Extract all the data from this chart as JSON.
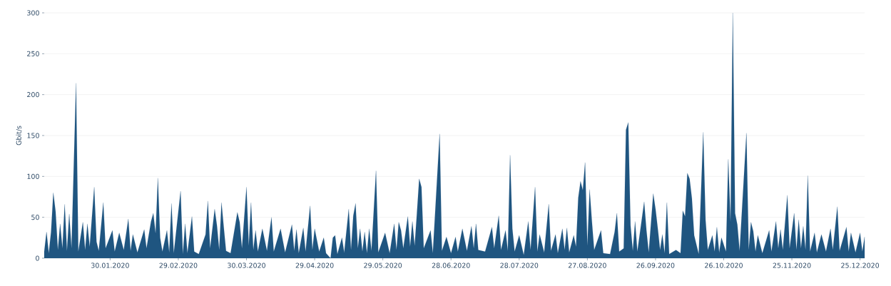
{
  "chart_data": {
    "type": "area",
    "ylabel": "Gbit/s",
    "color": "#1f5580",
    "grid": "y",
    "ylim": [
      0,
      300
    ],
    "yticks": [
      0,
      50,
      100,
      150,
      200,
      250,
      300
    ],
    "xlim": [
      "2020-01-01",
      "2020-12-27"
    ],
    "xticks": [
      {
        "value": "2020-01-30",
        "label": "30.01.2020"
      },
      {
        "value": "2020-02-29",
        "label": "29.02.2020"
      },
      {
        "value": "2020-03-30",
        "label": "30.03.2020"
      },
      {
        "value": "2020-04-29",
        "label": "29.04.2020"
      },
      {
        "value": "2020-05-29",
        "label": "29.05.2020"
      },
      {
        "value": "2020-06-28",
        "label": "28.06.2020"
      },
      {
        "value": "2020-07-28",
        "label": "28.07.2020"
      },
      {
        "value": "2020-08-27",
        "label": "27.08.2020"
      },
      {
        "value": "2020-09-26",
        "label": "26.09.2020"
      },
      {
        "value": "2020-10-26",
        "label": "26.10.2020"
      },
      {
        "value": "2020-11-25",
        "label": "25.11.2020"
      },
      {
        "value": "2020-12-25",
        "label": "25.12.2020"
      }
    ],
    "x": [
      "2020-01-01",
      "2020-01-02",
      "2020-01-03",
      "2020-01-04",
      "2020-01-05",
      "2020-01-06",
      "2020-01-07",
      "2020-01-08",
      "2020-01-09",
      "2020-01-10",
      "2020-01-11",
      "2020-01-12",
      "2020-01-13",
      "2020-01-15",
      "2020-01-16",
      "2020-01-18",
      "2020-01-19",
      "2020-01-20",
      "2020-01-21",
      "2020-01-23",
      "2020-01-24",
      "2020-01-25",
      "2020-01-27",
      "2020-01-28",
      "2020-01-31",
      "2020-02-01",
      "2020-02-03",
      "2020-02-05",
      "2020-02-07",
      "2020-02-08",
      "2020-02-09",
      "2020-02-11",
      "2020-02-14",
      "2020-02-15",
      "2020-02-17",
      "2020-02-18",
      "2020-02-19",
      "2020-02-20",
      "2020-02-21",
      "2020-02-22",
      "2020-02-24",
      "2020-02-25",
      "2020-02-26",
      "2020-02-27",
      "2020-03-01",
      "2020-03-02",
      "2020-03-03",
      "2020-03-04",
      "2020-03-06",
      "2020-03-07",
      "2020-03-09",
      "2020-03-12",
      "2020-03-13",
      "2020-03-14",
      "2020-03-16",
      "2020-03-17",
      "2020-03-18",
      "2020-03-19",
      "2020-03-20",
      "2020-03-21",
      "2020-03-23",
      "2020-03-26",
      "2020-03-27",
      "2020-03-28",
      "2020-03-30",
      "2020-03-31",
      "2020-04-01",
      "2020-04-02",
      "2020-04-03",
      "2020-04-04",
      "2020-04-06",
      "2020-04-08",
      "2020-04-10",
      "2020-04-11",
      "2020-04-14",
      "2020-04-16",
      "2020-04-19",
      "2020-04-20",
      "2020-04-21",
      "2020-04-22",
      "2020-04-24",
      "2020-04-25",
      "2020-04-27",
      "2020-04-28",
      "2020-04-29",
      "2020-05-01",
      "2020-05-03",
      "2020-05-04",
      "2020-05-06",
      "2020-05-07",
      "2020-05-08",
      "2020-05-09",
      "2020-05-11",
      "2020-05-12",
      "2020-05-14",
      "2020-05-15",
      "2020-05-16",
      "2020-05-17",
      "2020-05-18",
      "2020-05-19",
      "2020-05-20",
      "2020-05-21",
      "2020-05-22",
      "2020-05-23",
      "2020-05-24",
      "2020-05-26",
      "2020-05-27",
      "2020-05-30",
      "2020-06-01",
      "2020-06-03",
      "2020-06-04",
      "2020-06-05",
      "2020-06-06",
      "2020-06-07",
      "2020-06-09",
      "2020-06-10",
      "2020-06-11",
      "2020-06-12",
      "2020-06-13",
      "2020-06-14",
      "2020-06-15",
      "2020-06-16",
      "2020-06-19",
      "2020-06-20",
      "2020-06-23",
      "2020-06-24",
      "2020-06-26",
      "2020-06-28",
      "2020-06-30",
      "2020-07-01",
      "2020-07-03",
      "2020-07-05",
      "2020-07-07",
      "2020-07-08",
      "2020-07-09",
      "2020-07-10",
      "2020-07-13",
      "2020-07-16",
      "2020-07-17",
      "2020-07-19",
      "2020-07-20",
      "2020-07-22",
      "2020-07-23",
      "2020-07-24",
      "2020-07-25",
      "2020-07-26",
      "2020-07-28",
      "2020-07-30",
      "2020-08-01",
      "2020-08-02",
      "2020-08-04",
      "2020-08-05",
      "2020-08-06",
      "2020-08-08",
      "2020-08-10",
      "2020-08-11",
      "2020-08-13",
      "2020-08-14",
      "2020-08-16",
      "2020-08-17",
      "2020-08-18",
      "2020-08-19",
      "2020-08-21",
      "2020-08-22",
      "2020-08-23",
      "2020-08-24",
      "2020-08-25",
      "2020-08-26",
      "2020-08-27",
      "2020-08-28",
      "2020-08-29",
      "2020-08-30",
      "2020-09-02",
      "2020-09-03",
      "2020-09-06",
      "2020-09-08",
      "2020-09-09",
      "2020-09-10",
      "2020-09-12",
      "2020-09-13",
      "2020-09-14",
      "2020-09-15",
      "2020-09-16",
      "2020-09-17",
      "2020-09-18",
      "2020-09-21",
      "2020-09-22",
      "2020-09-23",
      "2020-09-25",
      "2020-09-26",
      "2020-09-27",
      "2020-09-28",
      "2020-09-29",
      "2020-09-30",
      "2020-10-01",
      "2020-10-02",
      "2020-10-05",
      "2020-10-07",
      "2020-10-08",
      "2020-10-09",
      "2020-10-10",
      "2020-10-11",
      "2020-10-12",
      "2020-10-13",
      "2020-10-15",
      "2020-10-17",
      "2020-10-18",
      "2020-10-19",
      "2020-10-21",
      "2020-10-22",
      "2020-10-23",
      "2020-10-24",
      "2020-10-25",
      "2020-10-27",
      "2020-10-28",
      "2020-10-29",
      "2020-10-30",
      "2020-10-31",
      "2020-11-01",
      "2020-11-02",
      "2020-11-05",
      "2020-11-06",
      "2020-11-07",
      "2020-11-08",
      "2020-11-09",
      "2020-11-10",
      "2020-11-12",
      "2020-11-15",
      "2020-11-16",
      "2020-11-18",
      "2020-11-19",
      "2020-11-20",
      "2020-11-21",
      "2020-11-23",
      "2020-11-24",
      "2020-11-26",
      "2020-11-27",
      "2020-11-28",
      "2020-11-29",
      "2020-11-30",
      "2020-12-01",
      "2020-12-02",
      "2020-12-03",
      "2020-12-05",
      "2020-12-06",
      "2020-12-08",
      "2020-12-10",
      "2020-12-12",
      "2020-12-13",
      "2020-12-15",
      "2020-12-16",
      "2020-12-19",
      "2020-12-20",
      "2020-12-21",
      "2020-12-23",
      "2020-12-25",
      "2020-12-26",
      "2020-12-27"
    ],
    "values": [
      8,
      32,
      6,
      32,
      80,
      57,
      10,
      42,
      12,
      66,
      9,
      54,
      12,
      214,
      8,
      44,
      10,
      42,
      14,
      87,
      20,
      9,
      68,
      12,
      34,
      8,
      31,
      10,
      48,
      9,
      29,
      7,
      35,
      12,
      45,
      55,
      30,
      98,
      25,
      8,
      34,
      7,
      67,
      6,
      82,
      5,
      42,
      6,
      51,
      8,
      5,
      29,
      70,
      12,
      60,
      40,
      10,
      68,
      38,
      9,
      6,
      56,
      44,
      12,
      87,
      15,
      68,
      10,
      34,
      8,
      36,
      9,
      50,
      8,
      36,
      7,
      41,
      9,
      35,
      6,
      37,
      8,
      64,
      10,
      36,
      8,
      25,
      6,
      0,
      25,
      28,
      5,
      25,
      7,
      60,
      10,
      52,
      67,
      12,
      36,
      8,
      32,
      6,
      36,
      9,
      107,
      7,
      31,
      6,
      42,
      10,
      44,
      34,
      12,
      51,
      14,
      45,
      15,
      55,
      97,
      87,
      12,
      34,
      6,
      152,
      9,
      26,
      6,
      26,
      8,
      36,
      9,
      39,
      12,
      42,
      10,
      8,
      38,
      12,
      52,
      10,
      34,
      9,
      126,
      36,
      8,
      28,
      4,
      45,
      10,
      87,
      8,
      29,
      7,
      66,
      9,
      29,
      6,
      36,
      10,
      37,
      7,
      28,
      14,
      74,
      94,
      83,
      117,
      15,
      84,
      45,
      10,
      34,
      6,
      5,
      32,
      55,
      8,
      12,
      157,
      166,
      40,
      9,
      45,
      8,
      69,
      34,
      7,
      79,
      60,
      36,
      10,
      29,
      6,
      68,
      5,
      10,
      6,
      58,
      51,
      104,
      97,
      73,
      28,
      5,
      154,
      47,
      10,
      28,
      8,
      38,
      7,
      25,
      8,
      121,
      44,
      300,
      55,
      41,
      9,
      153,
      10,
      44,
      33,
      8,
      28,
      6,
      34,
      8,
      45,
      12,
      35,
      10,
      77,
      12,
      55,
      10,
      47,
      12,
      39,
      10,
      101,
      8,
      31,
      7,
      29,
      8,
      36,
      10,
      63,
      9,
      38,
      8,
      31,
      7,
      31,
      8,
      26
    ]
  }
}
